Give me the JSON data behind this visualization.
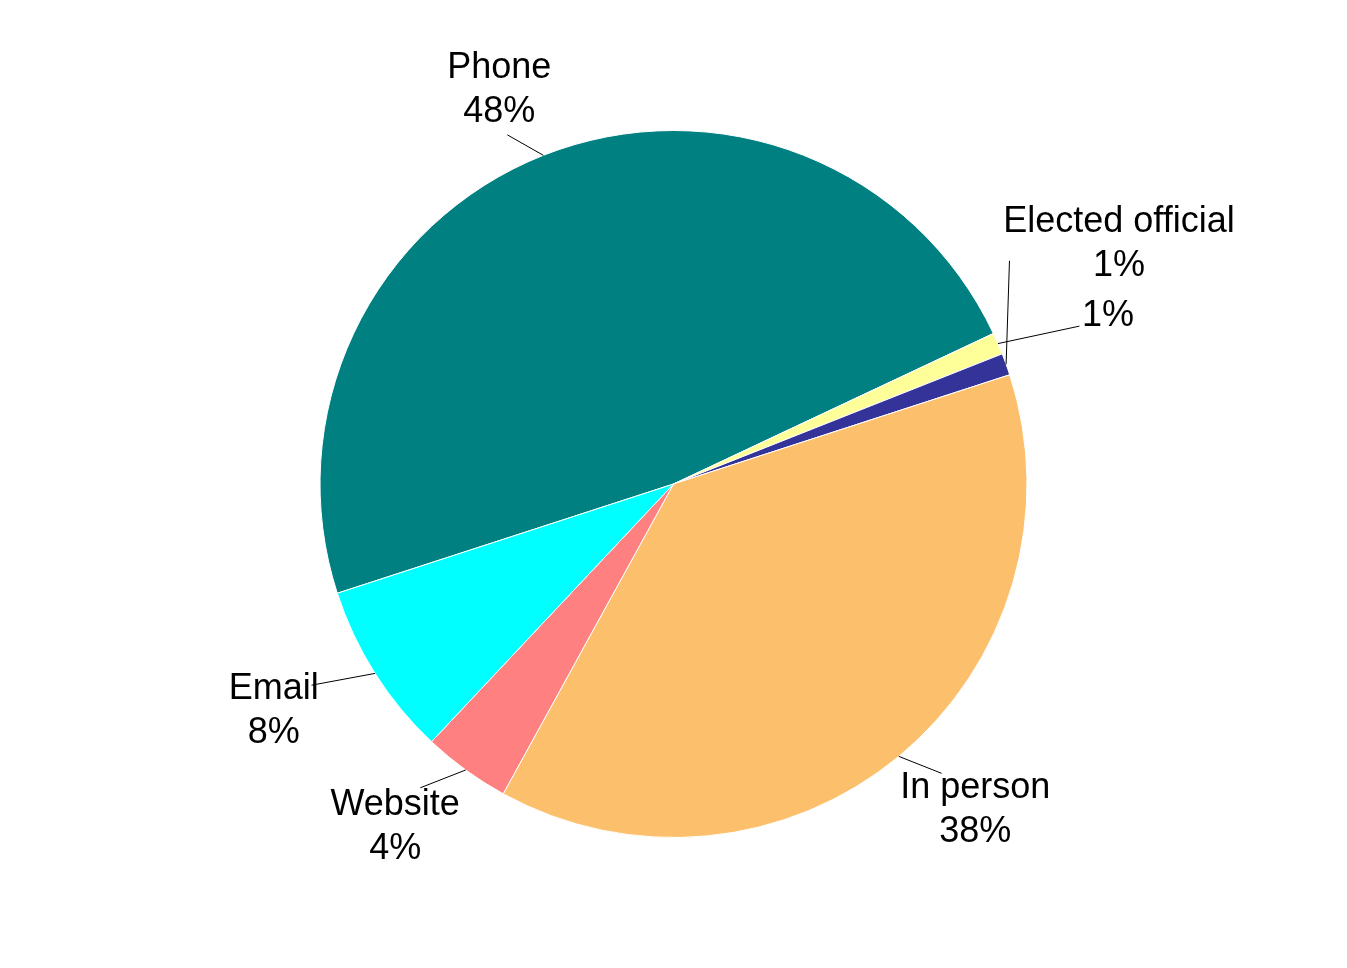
{
  "chart_data": {
    "type": "pie",
    "categories": [
      "Phone",
      null,
      "Elected official",
      "In person",
      "Website",
      "Email"
    ],
    "values": [
      48,
      1,
      1,
      38,
      4,
      8
    ],
    "value_labels": [
      "48%",
      "1%",
      "1%",
      "38%",
      "4%",
      "8%"
    ],
    "colors": [
      "#008080",
      "#ffff99",
      "#333399",
      "#fcc06c",
      "#ff8080",
      "#00ffff"
    ],
    "legend": false
  }
}
